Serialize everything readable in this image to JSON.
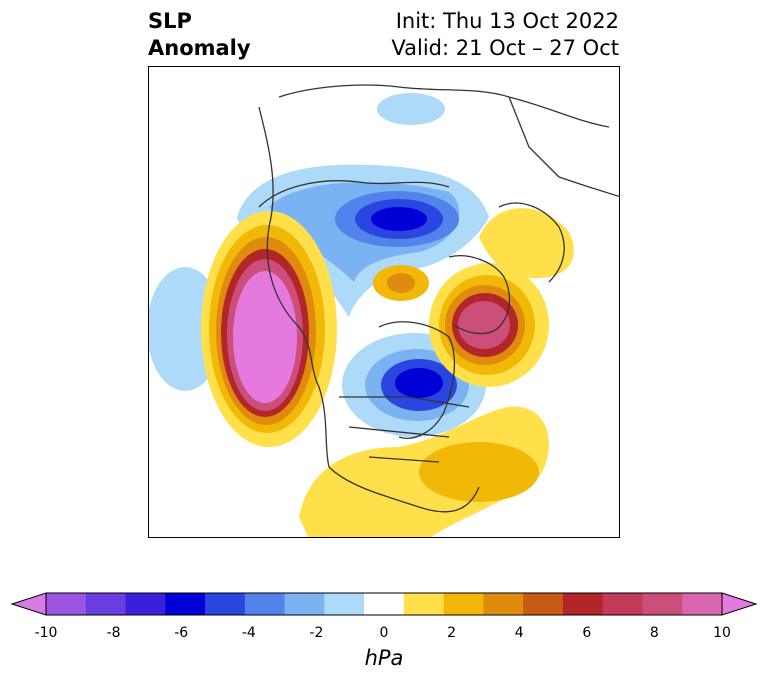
{
  "title": {
    "left_line1": "SLP",
    "left_line2": "Anomaly",
    "right_line1": "Init: Thu 13 Oct 2022",
    "right_line2": "Valid: 21 Oct – 27 Oct"
  },
  "colorbar": {
    "units": "hPa",
    "ticks": [
      "-10",
      "-8",
      "-6",
      "-4",
      "-2",
      "0",
      "2",
      "4",
      "6",
      "8",
      "10"
    ],
    "colors": [
      "#d77ae6",
      "#9b55e0",
      "#6a3ee0",
      "#3a1fdb",
      "#0000d6",
      "#2a46e0",
      "#5283ea",
      "#7ab2f2",
      "#acdaf8",
      "#ffffff",
      "#ffe04a",
      "#f2b807",
      "#df8b0d",
      "#c75a15",
      "#b2262a",
      "#c23a55",
      "#cc4f7b",
      "#da68b0",
      "#e679de"
    ],
    "extend": "both"
  },
  "map": {
    "projection": "north-polar-stereographic",
    "variable": "sea-level-pressure-anomaly"
  }
}
